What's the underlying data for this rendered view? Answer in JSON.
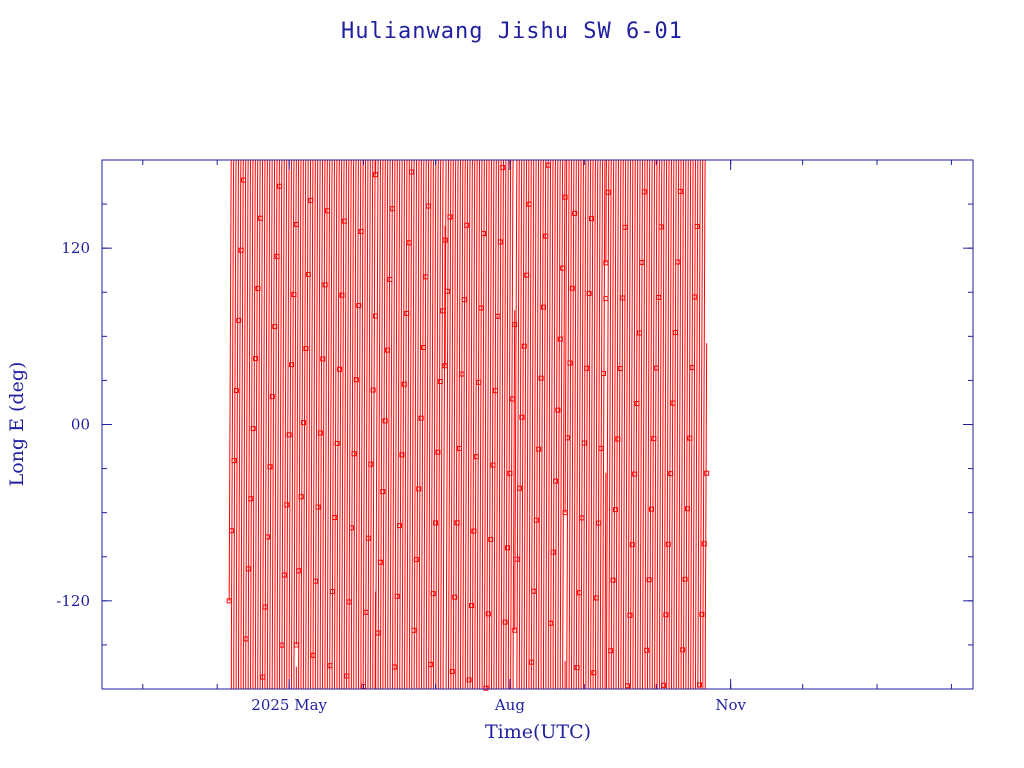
{
  "colors": {
    "axis": "#1f1fa0",
    "text": "#1f1fa0",
    "series": "#ff0000",
    "background": "#ffffff"
  },
  "chart_data": {
    "type": "line",
    "title": "Hulianwang Jishu SW 6-01",
    "xlabel": "Time(UTC)",
    "ylabel": "Long E (deg)",
    "x_scale": "time",
    "xlim": [
      "2025-02-12",
      "2026-02-10"
    ],
    "ylim": [
      -180,
      180
    ],
    "x_tick_labels": [
      {
        "label": "2025 May",
        "date": "2025-05-01"
      },
      {
        "label": "Aug",
        "date": "2025-08-01"
      },
      {
        "label": "Nov",
        "date": "2025-11-01"
      }
    ],
    "x_minor_ticks": [
      "2025-03-01",
      "2025-04-01",
      "2025-05-01",
      "2025-06-01",
      "2025-07-01",
      "2025-08-01",
      "2025-09-01",
      "2025-10-01",
      "2025-11-01",
      "2025-12-01",
      "2026-01-01",
      "2026-02-01"
    ],
    "y_tick_labels": [
      {
        "label": "120",
        "value": 120
      },
      {
        "label": "00",
        "value": 0
      },
      {
        "label": "-120",
        "value": -120
      }
    ],
    "y_minor_ticks": [
      -150,
      -120,
      -90,
      -60,
      -30,
      0,
      30,
      60,
      90,
      120,
      150
    ],
    "grid": false,
    "legend": "none",
    "series": [
      {
        "marker": "square",
        "segments": [
          {
            "start": "2025-04-06",
            "end": "2025-05-04",
            "drift_deg_per_day": -1.6,
            "start_long": -120
          },
          {
            "start": "2025-05-04",
            "end": "2025-06-06",
            "drift_deg_per_day": 1.1,
            "start_long": -150
          },
          {
            "start": "2025-06-06",
            "end": "2025-07-05",
            "drift_deg_per_day": -1.2,
            "start_long": 170
          },
          {
            "start": "2025-07-05",
            "end": "2025-08-03",
            "drift_deg_per_day": 1.3,
            "start_long": 40
          },
          {
            "start": "2025-08-03",
            "end": "2025-08-24",
            "drift_deg_per_day": -1.0,
            "start_long": -140
          },
          {
            "start": "2025-08-24",
            "end": "2025-09-10",
            "drift_deg_per_day": 1.6,
            "start_long": -60
          },
          {
            "start": "2025-09-10",
            "end": "2025-10-22",
            "drift_deg_per_day": -1.3,
            "start_long": 110
          }
        ]
      }
    ]
  }
}
